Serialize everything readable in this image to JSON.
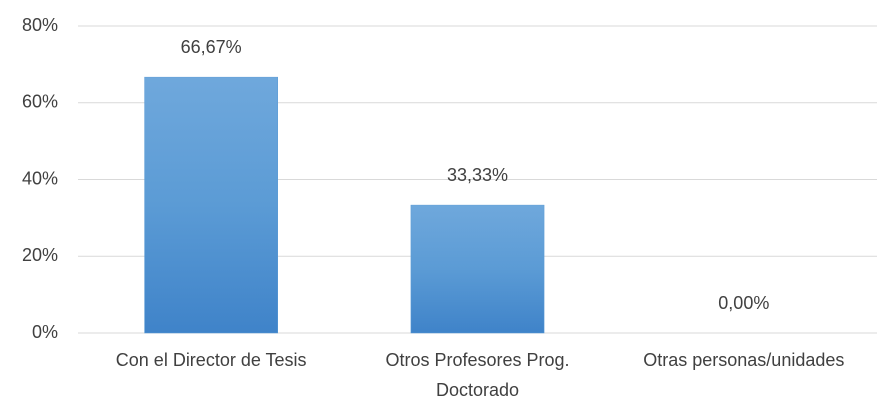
{
  "chart_data": {
    "type": "bar",
    "categories": [
      "Con el Director de Tesis",
      "Otros Profesores Prog. Doctorado",
      "Otras personas/unidades"
    ],
    "values": [
      66.67,
      33.33,
      0
    ],
    "value_labels": [
      "66,67%",
      "33,33%",
      "0,00%"
    ],
    "color": "#5b9bd5",
    "ylim": [
      0,
      80
    ],
    "yticks": [
      {
        "value": 0,
        "label": "0%"
      },
      {
        "value": 20,
        "label": "20%"
      },
      {
        "value": 40,
        "label": "40%"
      },
      {
        "value": 60,
        "label": "60%"
      },
      {
        "value": 80,
        "label": "80%"
      }
    ],
    "grid": true
  }
}
